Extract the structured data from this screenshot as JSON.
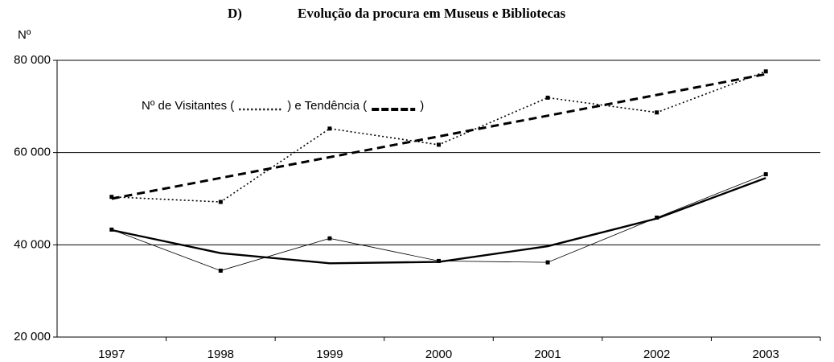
{
  "chart_data": {
    "type": "line",
    "title_prefix": "D)",
    "title": "Evolução da procura em Museus e Bibliotecas",
    "y_label": "Nº",
    "annotation": {
      "before": "Nº de Visitantes (",
      "middle": ") e Tendência (",
      "after": ")"
    },
    "categories": [
      "1997",
      "1998",
      "1999",
      "2000",
      "2001",
      "2002",
      "2003"
    ],
    "ylim": [
      20000,
      80000
    ],
    "yticks": [
      {
        "value": 20000,
        "label": "20 000"
      },
      {
        "value": 40000,
        "label": "40 000"
      },
      {
        "value": 60000,
        "label": "60 000"
      },
      {
        "value": 80000,
        "label": "80 000"
      }
    ],
    "grid": true,
    "series": [
      {
        "color": "#000",
        "style": "dotted",
        "markers": true,
        "values": [
          50400,
          49300,
          65200,
          61700,
          71900,
          68700,
          77600
        ]
      },
      {
        "color": "#000",
        "style": "dashed",
        "markers": false,
        "values": [
          50000,
          54500,
          59000,
          63500,
          68000,
          72500,
          77000
        ]
      },
      {
        "color": "#000",
        "style": "thin",
        "markers": true,
        "values": [
          43300,
          34400,
          41400,
          36500,
          36200,
          45900,
          55300
        ]
      },
      {
        "color": "#000",
        "style": "thick",
        "markers": false,
        "values": [
          43200,
          38200,
          36000,
          36300,
          39700,
          45700,
          54500
        ]
      }
    ]
  }
}
